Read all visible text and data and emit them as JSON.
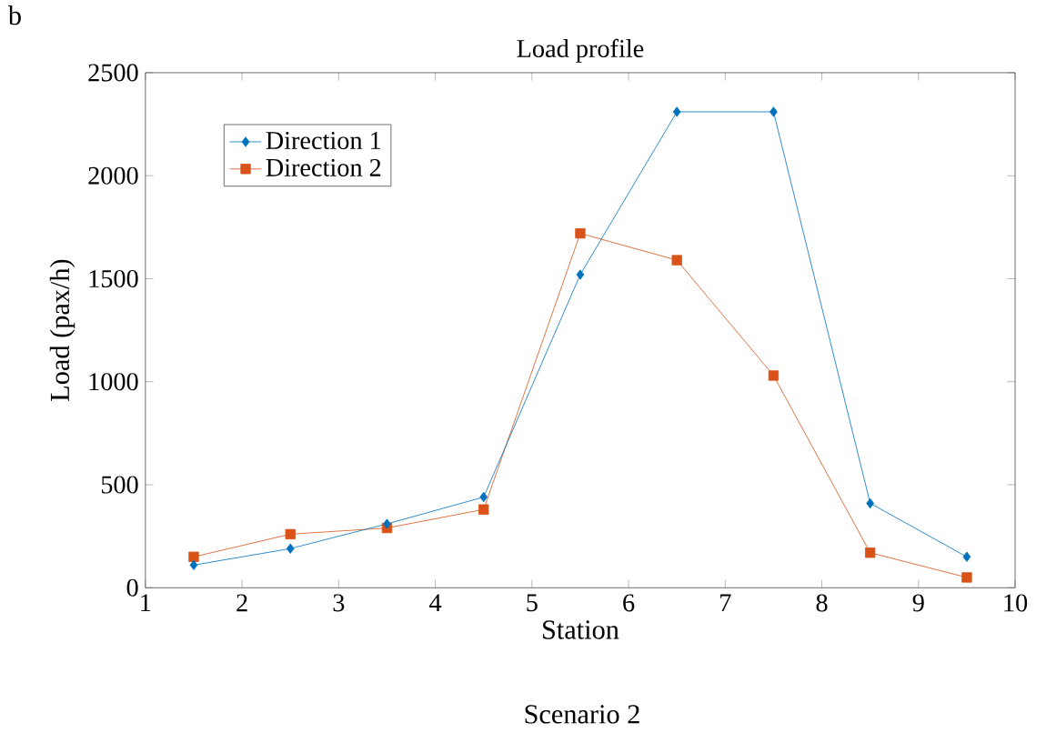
{
  "chart_data": {
    "type": "line",
    "title": "Load profile",
    "xlabel": "Station",
    "ylabel": "Load (pax/h)",
    "annotations": [
      "b",
      "Scenario 2"
    ],
    "x": [
      1.5,
      2.5,
      3.5,
      4.5,
      5.5,
      6.5,
      7.5,
      8.5,
      9.5
    ],
    "series": [
      {
        "name": "Direction 1",
        "color": "#0072bd",
        "marker": "diamond",
        "values": [
          110,
          190,
          310,
          440,
          1520,
          2310,
          2310,
          410,
          150
        ]
      },
      {
        "name": "Direction 2",
        "color": "#d95319",
        "marker": "square",
        "values": [
          150,
          260,
          290,
          380,
          1720,
          1590,
          1030,
          170,
          50
        ]
      }
    ],
    "xlim": [
      1,
      10
    ],
    "ylim": [
      0,
      2500
    ],
    "xticks": [
      1,
      2,
      3,
      4,
      5,
      6,
      7,
      8,
      9,
      10
    ],
    "yticks": [
      0,
      500,
      1000,
      1500,
      2000,
      2500
    ],
    "grid": false,
    "legend": "top left",
    "line_style": "solid"
  }
}
